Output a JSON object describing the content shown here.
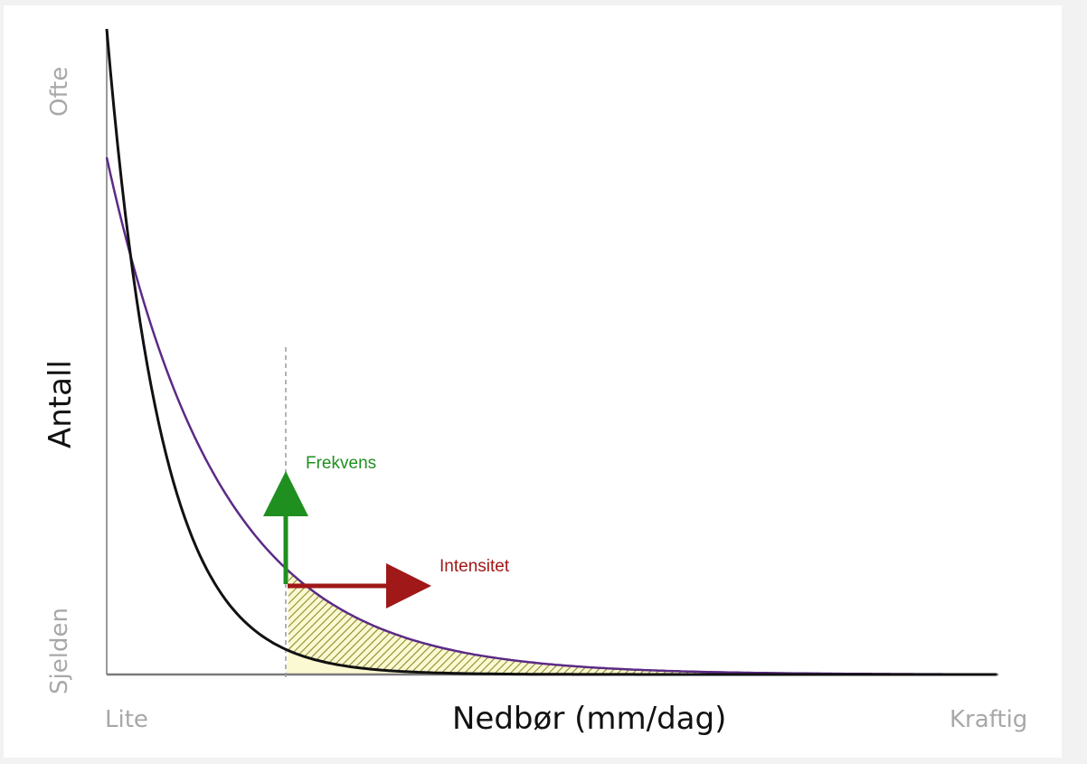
{
  "diagram": {
    "y_axis": {
      "label": "Antall",
      "top_label": "Ofte",
      "bottom_label": "Sjelden"
    },
    "x_axis": {
      "label": "Nedbør (mm/dag)",
      "left_label": "Lite",
      "right_label": "Kraftig"
    },
    "annotations": {
      "frequency": {
        "label": "Frekvens",
        "color": "#1f8f1f"
      },
      "intensity": {
        "label": "Intensitet",
        "color": "#a01818"
      }
    },
    "curves": {
      "current_color": "#111111",
      "future_color": "#5b2a86"
    },
    "shading": {
      "hatch_color": "#8c8c2a",
      "fill_color": "#fbf9d2"
    }
  }
}
